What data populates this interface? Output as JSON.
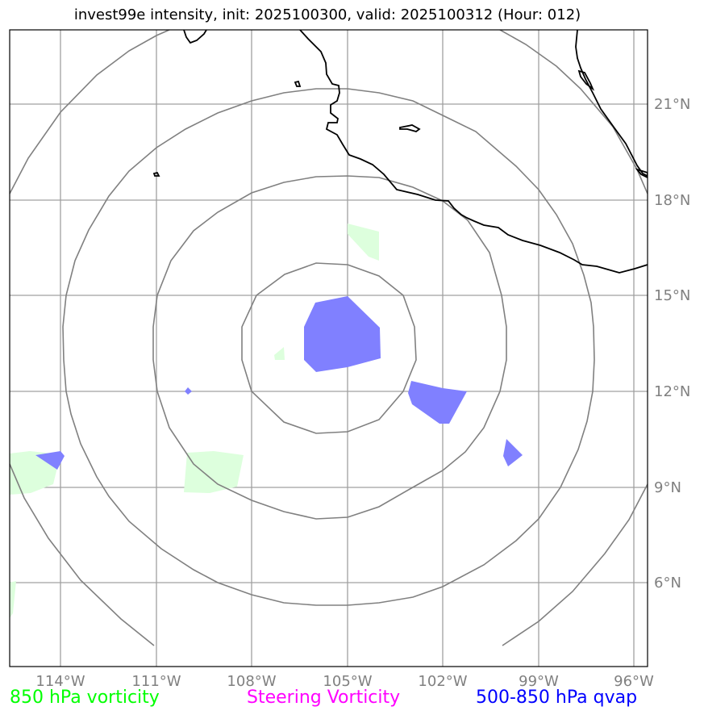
{
  "title": "invest99e intensity, init: 2025100300, valid: 2025100312 (Hour: 012)",
  "lon_labels": [
    "114°W",
    "111°W",
    "108°W",
    "105°W",
    "102°W",
    "99°W",
    "96°W"
  ],
  "lat_labels": [
    "21°N",
    "18°N",
    "15°N",
    "12°N",
    "9°N",
    "6°N"
  ],
  "legend": {
    "vorticity_850": {
      "label": "850 hPa vorticity",
      "color": "#00ff00"
    },
    "steering": {
      "label": "Steering Vorticity",
      "color": "#ff00ff"
    },
    "qvap": {
      "label": "500-850 hPa qvap",
      "color": "#0000ff"
    }
  },
  "colors": {
    "coastline": "#000000",
    "range_rings": "#808080",
    "gridlines": "#a0a0a0",
    "vorticity_fill": "#ddffdd",
    "qvap_fill": "#8080ff"
  }
}
